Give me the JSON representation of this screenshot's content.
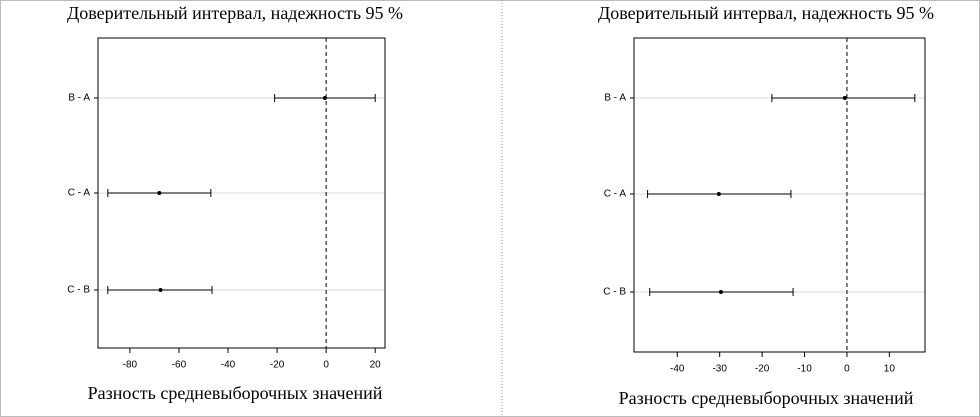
{
  "chart_data": [
    {
      "type": "interval",
      "title": "Доверительный интервал, надежность 95 %",
      "xlabel": "Разность средневыборочных значений",
      "categories": [
        "B - A",
        "C - A",
        "C - B"
      ],
      "values": [
        -0.5,
        -68,
        -67.5
      ],
      "lower": [
        -21,
        -89,
        -89
      ],
      "upper": [
        20,
        -47,
        -46.5
      ],
      "xlim": [
        -93,
        24
      ],
      "xticks": [
        -80,
        -60,
        -40,
        -20,
        0,
        20
      ],
      "vline": 0,
      "grid": true,
      "color": "#000000"
    },
    {
      "type": "interval",
      "title": "Доверительный интервал, надежность 95 %",
      "xlabel": "Разность средневыборочных значений",
      "categories": [
        "B - A",
        "C - A",
        "C - B"
      ],
      "values": [
        -0.5,
        -30.2,
        -29.7
      ],
      "lower": [
        -17.7,
        -47,
        -46.5
      ],
      "upper": [
        16,
        -13.2,
        -12.7
      ],
      "xlim": [
        -50.2,
        18.4
      ],
      "xticks": [
        -40,
        -30,
        -20,
        -10,
        0,
        10
      ],
      "vline": 0,
      "grid": true,
      "color": "#000000"
    }
  ]
}
